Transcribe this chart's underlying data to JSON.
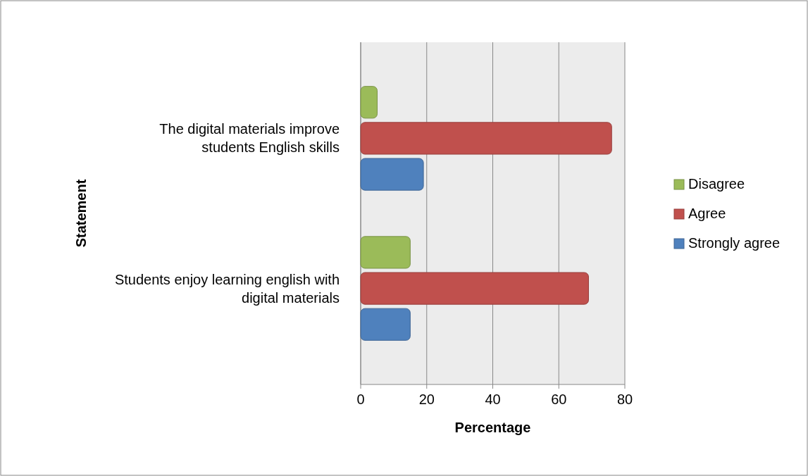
{
  "chart_data": {
    "type": "bar",
    "orientation": "horizontal",
    "xlabel": "Percentage",
    "ylabel": "Statement",
    "categories": [
      "The digital materials improve students English skills",
      "Students enjoy learning english with digital materials"
    ],
    "series": [
      {
        "name": "Disagree",
        "color": "#9bbb59",
        "values": [
          5,
          15
        ]
      },
      {
        "name": "Agree",
        "color": "#c0504d",
        "values": [
          76,
          69
        ]
      },
      {
        "name": "Strongly agree",
        "color": "#4f81bd",
        "values": [
          19,
          15
        ]
      }
    ],
    "xlim": [
      0,
      80
    ],
    "xticks": [
      0,
      20,
      40,
      60,
      80
    ],
    "grid": "x",
    "legend": "right"
  }
}
